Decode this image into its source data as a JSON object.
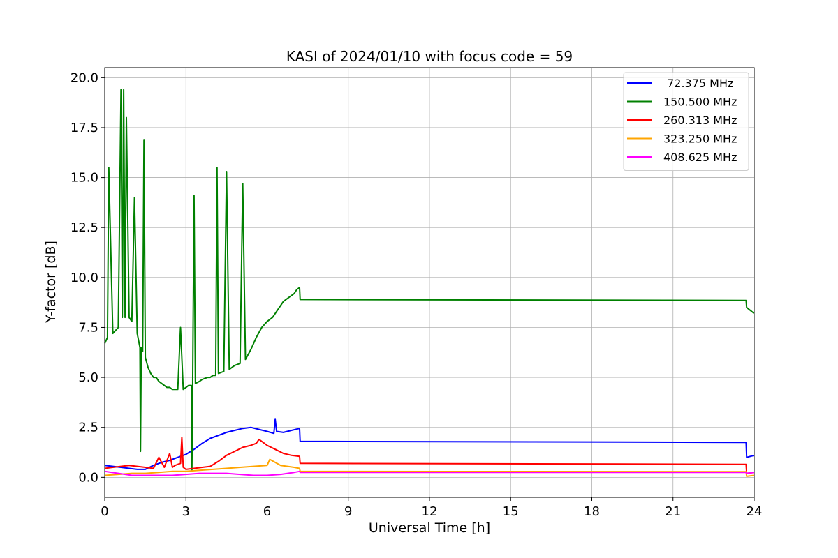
{
  "chart_data": {
    "type": "line",
    "title": "KASI of 2024/01/10 with focus code = 59",
    "xlabel": "Universal Time [h]",
    "ylabel": "Y-factor [dB]",
    "xlim": [
      0,
      24
    ],
    "ylim": [
      -1.0,
      20.5
    ],
    "xticks": [
      0,
      3,
      6,
      9,
      12,
      15,
      18,
      21,
      24
    ],
    "xtick_labels": [
      "0",
      "3",
      "6",
      "9",
      "12",
      "15",
      "18",
      "21",
      "24"
    ],
    "yticks": [
      0.0,
      2.5,
      5.0,
      7.5,
      10.0,
      12.5,
      15.0,
      17.5,
      20.0
    ],
    "ytick_labels": [
      "0.0",
      "2.5",
      "5.0",
      "7.5",
      "10.0",
      "12.5",
      "15.0",
      "17.5",
      "20.0"
    ],
    "grid": true,
    "legend_position": "top-right",
    "series": [
      {
        "name": " 72.375 MHz",
        "color": "#0000ff",
        "x": [
          0,
          0.3,
          0.6,
          0.9,
          1.2,
          1.5,
          1.8,
          2.1,
          2.4,
          2.7,
          3.0,
          3.3,
          3.6,
          3.9,
          4.2,
          4.5,
          4.8,
          5.1,
          5.4,
          5.7,
          6.0,
          6.25,
          6.3,
          6.35,
          6.6,
          6.9,
          7.2,
          7.22,
          23.7,
          23.72,
          24
        ],
        "y": [
          0.6,
          0.55,
          0.5,
          0.45,
          0.4,
          0.4,
          0.6,
          0.75,
          0.85,
          1.0,
          1.15,
          1.4,
          1.7,
          1.95,
          2.1,
          2.25,
          2.35,
          2.45,
          2.5,
          2.4,
          2.3,
          2.2,
          2.9,
          2.3,
          2.25,
          2.35,
          2.45,
          1.8,
          1.75,
          1.0,
          1.1
        ]
      },
      {
        "name": "150.500 MHz",
        "color": "#008000",
        "x": [
          0,
          0.1,
          0.15,
          0.3,
          0.5,
          0.6,
          0.65,
          0.7,
          0.75,
          0.8,
          0.9,
          1.0,
          1.1,
          1.2,
          1.3,
          1.32,
          1.35,
          1.4,
          1.45,
          1.5,
          1.6,
          1.7,
          1.8,
          1.9,
          2.0,
          2.1,
          2.2,
          2.3,
          2.4,
          2.5,
          2.6,
          2.7,
          2.8,
          2.9,
          3.0,
          3.1,
          3.2,
          3.22,
          3.25,
          3.3,
          3.35,
          3.5,
          3.6,
          3.8,
          3.9,
          4.0,
          4.1,
          4.15,
          4.2,
          4.4,
          4.5,
          4.6,
          4.8,
          5.0,
          5.1,
          5.2,
          5.4,
          5.6,
          5.8,
          6.0,
          6.2,
          6.4,
          6.6,
          6.8,
          7.0,
          7.1,
          7.2,
          7.22,
          23.7,
          23.72,
          24
        ],
        "y": [
          6.7,
          7.0,
          15.5,
          7.2,
          7.5,
          19.4,
          8.0,
          19.4,
          8.0,
          18.0,
          8.0,
          7.8,
          14.0,
          7.2,
          6.5,
          1.3,
          6.5,
          6.3,
          16.9,
          6.0,
          5.5,
          5.2,
          5.0,
          5.0,
          4.8,
          4.7,
          4.6,
          4.5,
          4.5,
          4.4,
          4.4,
          4.4,
          7.5,
          4.4,
          4.5,
          4.6,
          4.6,
          0.3,
          4.6,
          14.1,
          4.7,
          4.8,
          4.9,
          5.0,
          5.0,
          5.1,
          5.1,
          15.5,
          5.2,
          5.3,
          15.3,
          5.4,
          5.6,
          5.7,
          14.7,
          5.9,
          6.4,
          7.0,
          7.5,
          7.8,
          8.0,
          8.4,
          8.8,
          9.0,
          9.2,
          9.4,
          9.5,
          8.9,
          8.85,
          8.5,
          8.2
        ]
      },
      {
        "name": "260.313 MHz",
        "color": "#ff0000",
        "x": [
          0,
          0.3,
          0.6,
          0.9,
          1.2,
          1.5,
          1.8,
          2.0,
          2.2,
          2.4,
          2.5,
          2.6,
          2.8,
          2.85,
          2.9,
          3.0,
          3.3,
          3.6,
          3.9,
          4.2,
          4.5,
          4.8,
          5.1,
          5.4,
          5.6,
          5.7,
          6.0,
          6.3,
          6.6,
          6.9,
          7.2,
          7.22,
          23.7,
          23.72,
          24
        ],
        "y": [
          0.45,
          0.5,
          0.55,
          0.6,
          0.55,
          0.5,
          0.45,
          1.0,
          0.5,
          1.2,
          0.5,
          0.6,
          0.7,
          2.0,
          0.5,
          0.4,
          0.45,
          0.5,
          0.55,
          0.8,
          1.1,
          1.3,
          1.5,
          1.6,
          1.7,
          1.9,
          1.6,
          1.4,
          1.2,
          1.1,
          1.05,
          0.7,
          0.65,
          0.2,
          0.25
        ]
      },
      {
        "name": "323.250 MHz",
        "color": "#ffa500",
        "x": [
          0,
          0.5,
          1.0,
          1.5,
          2.0,
          2.5,
          3.0,
          3.5,
          4.0,
          4.5,
          5.0,
          5.5,
          6.0,
          6.1,
          6.5,
          7.0,
          7.2,
          7.22,
          23.7,
          23.72,
          24
        ],
        "y": [
          0.1,
          0.15,
          0.2,
          0.2,
          0.25,
          0.3,
          0.3,
          0.35,
          0.4,
          0.45,
          0.5,
          0.55,
          0.6,
          0.9,
          0.6,
          0.5,
          0.45,
          0.3,
          0.28,
          0.05,
          0.1
        ]
      },
      {
        "name": "408.625 MHz",
        "color": "#ff00ff",
        "x": [
          0,
          0.5,
          1.0,
          1.5,
          2.0,
          2.5,
          3.0,
          3.5,
          4.0,
          4.5,
          5.0,
          5.5,
          6.0,
          6.5,
          7.0,
          7.2,
          7.22,
          23.7,
          23.72,
          24
        ],
        "y": [
          0.3,
          0.2,
          0.1,
          0.1,
          0.1,
          0.1,
          0.15,
          0.2,
          0.2,
          0.2,
          0.15,
          0.1,
          0.1,
          0.15,
          0.25,
          0.3,
          0.25,
          0.25,
          0.2,
          0.25
        ]
      }
    ]
  }
}
